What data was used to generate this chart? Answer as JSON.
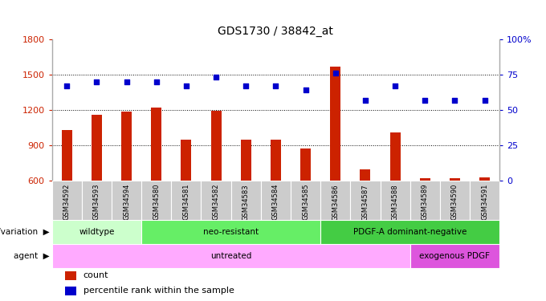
{
  "title": "GDS1730 / 38842_at",
  "samples": [
    "GSM34592",
    "GSM34593",
    "GSM34594",
    "GSM34580",
    "GSM34581",
    "GSM34582",
    "GSM34583",
    "GSM34584",
    "GSM34585",
    "GSM34586",
    "GSM34587",
    "GSM34588",
    "GSM34589",
    "GSM34590",
    "GSM34591"
  ],
  "counts": [
    1030,
    1155,
    1185,
    1220,
    950,
    1195,
    945,
    950,
    870,
    1565,
    695,
    1010,
    620,
    620,
    625
  ],
  "percentiles": [
    67,
    70,
    70,
    70,
    67,
    73,
    67,
    67,
    64,
    76,
    57,
    67,
    57,
    57,
    57
  ],
  "ylim_left": [
    600,
    1800
  ],
  "ylim_right": [
    0,
    100
  ],
  "yticks_left": [
    600,
    900,
    1200,
    1500,
    1800
  ],
  "yticks_right": [
    0,
    25,
    50,
    75,
    100
  ],
  "bar_color": "#cc2200",
  "dot_color": "#0000cc",
  "genotype_groups": [
    {
      "label": "wildtype",
      "start": 0,
      "end": 3,
      "color": "#ccffcc"
    },
    {
      "label": "neo-resistant",
      "start": 3,
      "end": 9,
      "color": "#66ee66"
    },
    {
      "label": "PDGF-A dominant-negative",
      "start": 9,
      "end": 15,
      "color": "#44cc44"
    }
  ],
  "agent_groups": [
    {
      "label": "untreated",
      "start": 0,
      "end": 12,
      "color": "#ffaaff"
    },
    {
      "label": "exogenous PDGF",
      "start": 12,
      "end": 15,
      "color": "#dd55dd"
    }
  ],
  "xtick_bg": "#cccccc",
  "bar_bottom": 600
}
